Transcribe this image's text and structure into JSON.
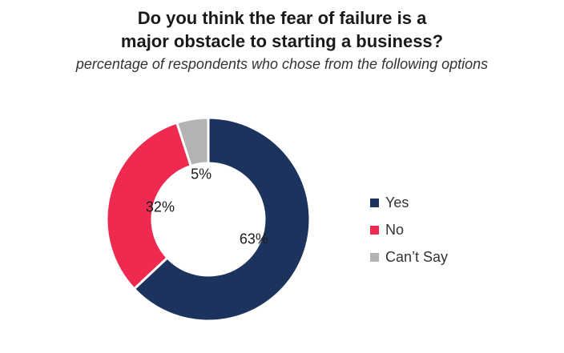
{
  "chart_data": {
    "type": "pie",
    "title": [
      "Do you think the fear of failure is a",
      "major obstacle to starting a business?"
    ],
    "subtitle": "percentage of respondents who chose from the following options",
    "donut": true,
    "legend_position": "right",
    "slices": [
      {
        "label": "Yes",
        "value": 63,
        "display": "63%",
        "color": "#1c335e"
      },
      {
        "label": "No",
        "value": 32,
        "display": "32%",
        "color": "#ee2a50"
      },
      {
        "label": "Can’t Say",
        "value": 5,
        "display": "5%",
        "color": "#b3b3b3"
      }
    ]
  }
}
